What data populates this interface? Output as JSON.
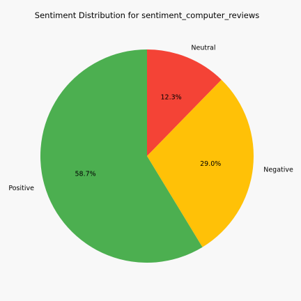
{
  "chart_data": {
    "type": "pie",
    "title": "Sentiment Distribution for sentiment_computer_reviews",
    "slices": [
      {
        "label": "Neutral",
        "value": 12.3,
        "pct_label": "12.3%",
        "color": "#f44336"
      },
      {
        "label": "Negative",
        "value": 29.0,
        "pct_label": "29.0%",
        "color": "#ffc107"
      },
      {
        "label": "Positive",
        "value": 58.7,
        "pct_label": "58.7%",
        "color": "#4caf50"
      }
    ],
    "start_angle_deg": 90,
    "direction": "clockwise"
  }
}
